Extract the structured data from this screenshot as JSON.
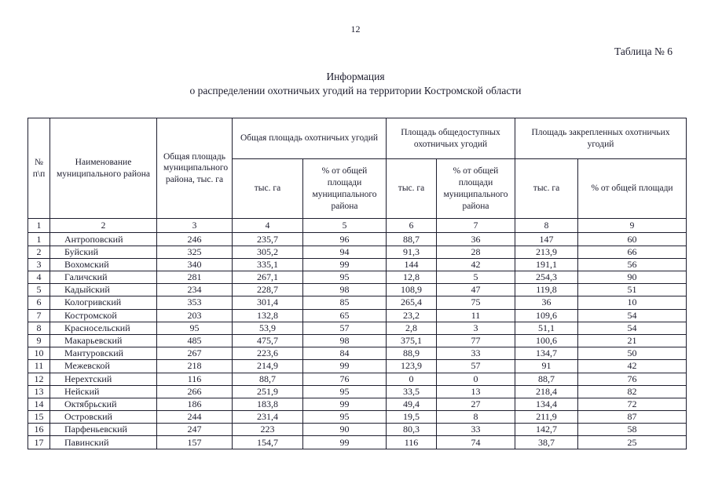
{
  "page": {
    "number": "12",
    "table_label": "Таблица № 6",
    "title_line1": "Информация",
    "title_line2": "о распределении охотничьих угодий на территории Костромской области"
  },
  "table": {
    "headers": {
      "num": "№\nп\\п",
      "name": "Наименование муниципального района",
      "total_area": "Общая площадь муниципального района, тыс. га",
      "group_hunting_total": "Общая площадь охотничьих угодий",
      "group_public": "Площадь общедоступных охотничьих угодий",
      "group_assigned": "Площадь закрепленных охотничьих угодий",
      "sub_thousand_ha": "тыс. га",
      "sub_percent_full": "% от общей площади муниципального района",
      "sub_percent_short": "% от общей площади"
    },
    "column_numbers": [
      "1",
      "2",
      "3",
      "4",
      "5",
      "6",
      "7",
      "8",
      "9"
    ],
    "rows": [
      [
        "1",
        "Антроповский",
        "246",
        "235,7",
        "96",
        "88,7",
        "36",
        "147",
        "60"
      ],
      [
        "2",
        "Буйский",
        "325",
        "305,2",
        "94",
        "91,3",
        "28",
        "213,9",
        "66"
      ],
      [
        "3",
        "Вохомский",
        "340",
        "335,1",
        "99",
        "144",
        "42",
        "191,1",
        "56"
      ],
      [
        "4",
        "Галичский",
        "281",
        "267,1",
        "95",
        "12,8",
        "5",
        "254,3",
        "90"
      ],
      [
        "5",
        "Кадыйский",
        "234",
        "228,7",
        "98",
        "108,9",
        "47",
        "119,8",
        "51"
      ],
      [
        "6",
        "Кологривский",
        "353",
        "301,4",
        "85",
        "265,4",
        "75",
        "36",
        "10"
      ],
      [
        "7",
        "Костромской",
        "203",
        "132,8",
        "65",
        "23,2",
        "11",
        "109,6",
        "54"
      ],
      [
        "8",
        "Красносельский",
        "95",
        "53,9",
        "57",
        "2,8",
        "3",
        "51,1",
        "54"
      ],
      [
        "9",
        "Макарьевский",
        "485",
        "475,7",
        "98",
        "375,1",
        "77",
        "100,6",
        "21"
      ],
      [
        "10",
        "Мантуровский",
        "267",
        "223,6",
        "84",
        "88,9",
        "33",
        "134,7",
        "50"
      ],
      [
        "11",
        "Межевской",
        "218",
        "214,9",
        "99",
        "123,9",
        "57",
        "91",
        "42"
      ],
      [
        "12",
        "Нерехтский",
        "116",
        "88,7",
        "76",
        "0",
        "0",
        "88,7",
        "76"
      ],
      [
        "13",
        "Нейский",
        "266",
        "251,9",
        "95",
        "33,5",
        "13",
        "218,4",
        "82"
      ],
      [
        "14",
        "Октябрьский",
        "186",
        "183,8",
        "99",
        "49,4",
        "27",
        "134,4",
        "72"
      ],
      [
        "15",
        "Островский",
        "244",
        "231,4",
        "95",
        "19,5",
        "8",
        "211,9",
        "87"
      ],
      [
        "16",
        "Парфеньевский",
        "247",
        "223",
        "90",
        "80,3",
        "33",
        "142,7",
        "58"
      ],
      [
        "17",
        "Павинский",
        "157",
        "154,7",
        "99",
        "116",
        "74",
        "38,7",
        "25"
      ]
    ]
  }
}
